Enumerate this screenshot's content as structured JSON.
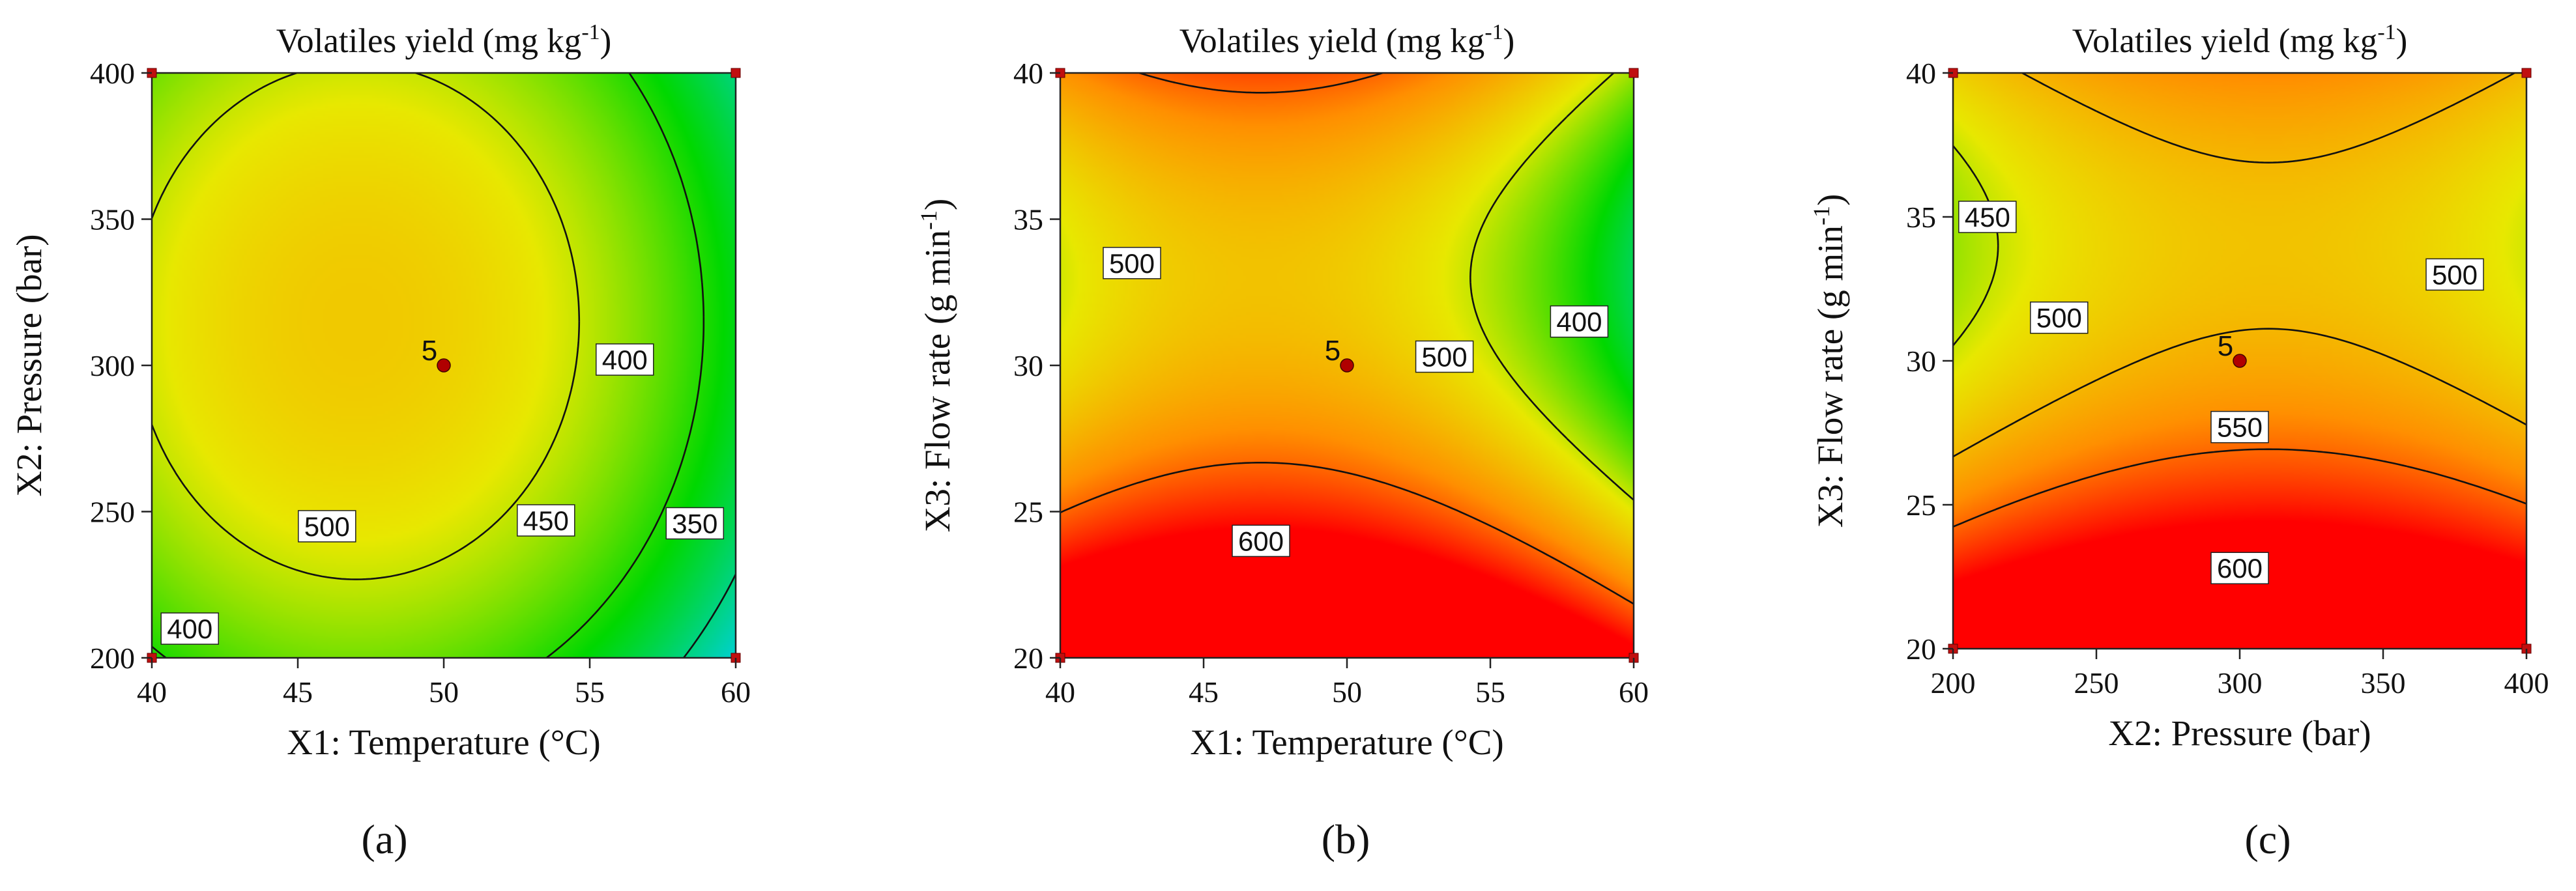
{
  "figure": {
    "panel_labels": [
      "(a)",
      "(b)",
      "(c)"
    ]
  },
  "chart_data": [
    {
      "type": "contour",
      "title_main": "Volatiles yield (mg kg",
      "title_sup": "-1",
      "title_end": ")",
      "xlabel": "X1: Temperature (°C)",
      "ylabel": "X2: Pressure (bar)",
      "ylabel_sup": "",
      "ylabel_end": "",
      "xlim": [
        40,
        60
      ],
      "ylim": [
        200,
        400
      ],
      "xticks": [
        40,
        45,
        50,
        55,
        60
      ],
      "yticks": [
        200,
        250,
        300,
        350,
        400
      ],
      "colorscale": [
        "#1a33d0",
        "#00d0e0",
        "#00d800",
        "#e8e800",
        "#ff9000",
        "#ff0000"
      ],
      "zrange": [
        300,
        650
      ],
      "model": {
        "x0": 47,
        "y0": 315,
        "z0": 535,
        "ax": 0.6,
        "ay": 0.0045
      },
      "contours": [
        {
          "level": 500,
          "label": "500",
          "label_at": [
            46,
            245
          ]
        },
        {
          "level": 450,
          "label": "450",
          "label_at": [
            53.5,
            247
          ]
        },
        {
          "level": 400,
          "label": "400",
          "label_at": [
            56.2,
            302
          ]
        },
        {
          "level": 400,
          "label": "400",
          "label_at": [
            41.3,
            210
          ]
        },
        {
          "level": 350,
          "label": "350",
          "label_at": [
            58.6,
            246
          ]
        }
      ],
      "design_points": [
        [
          40,
          200
        ],
        [
          40,
          400
        ],
        [
          60,
          200
        ],
        [
          60,
          400
        ]
      ],
      "center_point": {
        "x": 50,
        "y": 300,
        "label": "5"
      }
    },
    {
      "type": "contour",
      "title_main": "Volatiles yield (mg kg",
      "title_sup": "-1",
      "title_end": ")",
      "xlabel": "X1: Temperature (°C)",
      "ylabel": "X3: Flow rate (g min",
      "ylabel_sup": "-1",
      "ylabel_end": ")",
      "xlim": [
        40,
        60
      ],
      "ylim": [
        20,
        40
      ],
      "xticks": [
        40,
        45,
        50,
        55,
        60
      ],
      "yticks": [
        20,
        25,
        30,
        35,
        40
      ],
      "colorscale": [
        "#1a33d0",
        "#00d0e0",
        "#00d800",
        "#e8e800",
        "#ff9000",
        "#ff0000"
      ],
      "zrange": [
        300,
        650
      ],
      "model": {
        "x0": 47,
        "y0": 33,
        "z0": 540,
        "ax": 0.75,
        "ay": -1.5
      },
      "contours": [
        {
          "level": 600,
          "label": "600",
          "label_at": [
            47,
            24
          ]
        },
        {
          "level": 500,
          "label": "500",
          "label_at": [
            42.5,
            33.5
          ]
        },
        {
          "level": 500,
          "label": "500",
          "label_at": [
            53.4,
            30.3
          ]
        },
        {
          "level": 400,
          "label": "400",
          "label_at": [
            58.1,
            31.5
          ]
        }
      ],
      "design_points": [
        [
          40,
          20
        ],
        [
          40,
          40
        ],
        [
          60,
          20
        ],
        [
          60,
          40
        ]
      ],
      "center_point": {
        "x": 50,
        "y": 30,
        "label": "5"
      }
    },
    {
      "type": "contour",
      "title_main": "Volatiles yield (mg kg",
      "title_sup": "-1",
      "title_end": ")",
      "xlabel": "X2: Pressure (bar)",
      "ylabel": "X3: Flow rate (g min",
      "ylabel_sup": "-1",
      "ylabel_end": ")",
      "xlim": [
        200,
        400
      ],
      "ylim": [
        20,
        40
      ],
      "xticks": [
        200,
        250,
        300,
        350,
        400
      ],
      "yticks": [
        20,
        25,
        30,
        35,
        40
      ],
      "colorscale": [
        "#1a33d0",
        "#00d0e0",
        "#00d800",
        "#e8e800",
        "#ff9000",
        "#ff0000"
      ],
      "zrange": [
        300,
        650
      ],
      "model": {
        "x0": 310,
        "y0": 34,
        "z0": 540,
        "ax": 0.0045,
        "ay": -1.2
      },
      "contours": [
        {
          "level": 600,
          "label": "600",
          "label_at": [
            300,
            22.8
          ]
        },
        {
          "level": 550,
          "label": "550",
          "label_at": [
            300,
            27.7
          ]
        },
        {
          "level": 500,
          "label": "500",
          "label_at": [
            237,
            31.5
          ]
        },
        {
          "level": 500,
          "label": "500",
          "label_at": [
            375,
            33
          ]
        },
        {
          "level": 450,
          "label": "450",
          "label_at": [
            212,
            35
          ]
        }
      ],
      "design_points": [
        [
          200,
          20
        ],
        [
          200,
          40
        ],
        [
          400,
          20
        ],
        [
          400,
          40
        ]
      ],
      "center_point": {
        "x": 300,
        "y": 30,
        "label": "5"
      }
    }
  ]
}
